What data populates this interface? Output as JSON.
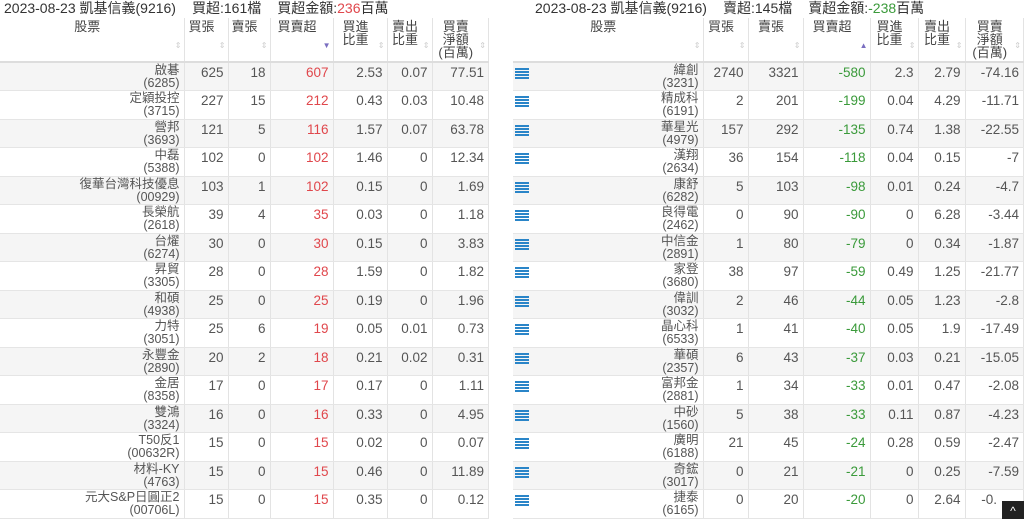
{
  "colors": {
    "positive": "#e0474c",
    "negative": "#3a9a3a",
    "icon": "#2a85c8"
  },
  "headers": [
    "股票",
    "買張",
    "賣張",
    "買賣超",
    "買進比重",
    "賣出比重",
    "買賣淨額(百萬)"
  ],
  "left": {
    "date_broker": "2023-08-23 凱基信義(9216)",
    "count_label": "買超:161檔",
    "amount_label": "買超金額:",
    "amount_value": "236",
    "amount_unit": "百萬",
    "sort": "descending",
    "rows": [
      [
        "啟碁",
        "(6285)",
        "625",
        "18",
        "607",
        "2.53",
        "0.07",
        "77.51"
      ],
      [
        "定穎投控",
        "(3715)",
        "227",
        "15",
        "212",
        "0.43",
        "0.03",
        "10.48"
      ],
      [
        "營邦",
        "(3693)",
        "121",
        "5",
        "116",
        "1.57",
        "0.07",
        "63.78"
      ],
      [
        "中磊",
        "(5388)",
        "102",
        "0",
        "102",
        "1.46",
        "0",
        "12.34"
      ],
      [
        "復華台灣科技優息",
        "(00929)",
        "103",
        "1",
        "102",
        "0.15",
        "0",
        "1.69"
      ],
      [
        "長榮航",
        "(2618)",
        "39",
        "4",
        "35",
        "0.03",
        "0",
        "1.18"
      ],
      [
        "台燿",
        "(6274)",
        "30",
        "0",
        "30",
        "0.15",
        "0",
        "3.83"
      ],
      [
        "昇貿",
        "(3305)",
        "28",
        "0",
        "28",
        "1.59",
        "0",
        "1.82"
      ],
      [
        "和碩",
        "(4938)",
        "25",
        "0",
        "25",
        "0.19",
        "0",
        "1.96"
      ],
      [
        "力特",
        "(3051)",
        "25",
        "6",
        "19",
        "0.05",
        "0.01",
        "0.73"
      ],
      [
        "永豐金",
        "(2890)",
        "20",
        "2",
        "18",
        "0.21",
        "0.02",
        "0.31"
      ],
      [
        "金居",
        "(8358)",
        "17",
        "0",
        "17",
        "0.17",
        "0",
        "1.11"
      ],
      [
        "雙鴻",
        "(3324)",
        "16",
        "0",
        "16",
        "0.33",
        "0",
        "4.95"
      ],
      [
        "T50反1",
        "(00632R)",
        "15",
        "0",
        "15",
        "0.02",
        "0",
        "0.07"
      ],
      [
        "材料-KY",
        "(4763)",
        "15",
        "0",
        "15",
        "0.46",
        "0",
        "11.89"
      ],
      [
        "元大S&P日圓正2",
        "(00706L)",
        "15",
        "0",
        "15",
        "0.35",
        "0",
        "0.12"
      ]
    ]
  },
  "right": {
    "date_broker": "2023-08-23 凱基信義(9216)",
    "count_label": "賣超:145檔",
    "amount_label": "賣超金額:",
    "amount_value": "-238",
    "amount_unit": "百萬",
    "sort": "ascending",
    "row_icon": "list-icon",
    "rows": [
      [
        "緯創",
        "(3231)",
        "2740",
        "3321",
        "-580",
        "2.3",
        "2.79",
        "-74.16"
      ],
      [
        "精成科",
        "(6191)",
        "2",
        "201",
        "-199",
        "0.04",
        "4.29",
        "-11.71"
      ],
      [
        "華星光",
        "(4979)",
        "157",
        "292",
        "-135",
        "0.74",
        "1.38",
        "-22.55"
      ],
      [
        "漢翔",
        "(2634)",
        "36",
        "154",
        "-118",
        "0.04",
        "0.15",
        "-7"
      ],
      [
        "康舒",
        "(6282)",
        "5",
        "103",
        "-98",
        "0.01",
        "0.24",
        "-4.7"
      ],
      [
        "良得電",
        "(2462)",
        "0",
        "90",
        "-90",
        "0",
        "6.28",
        "-3.44"
      ],
      [
        "中信金",
        "(2891)",
        "1",
        "80",
        "-79",
        "0",
        "0.34",
        "-1.87"
      ],
      [
        "家登",
        "(3680)",
        "38",
        "97",
        "-59",
        "0.49",
        "1.25",
        "-21.77"
      ],
      [
        "偉訓",
        "(3032)",
        "2",
        "46",
        "-44",
        "0.05",
        "1.23",
        "-2.8"
      ],
      [
        "晶心科",
        "(6533)",
        "1",
        "41",
        "-40",
        "0.05",
        "1.9",
        "-17.49"
      ],
      [
        "華碩",
        "(2357)",
        "6",
        "43",
        "-37",
        "0.03",
        "0.21",
        "-15.05"
      ],
      [
        "富邦金",
        "(2881)",
        "1",
        "34",
        "-33",
        "0.01",
        "0.47",
        "-2.08"
      ],
      [
        "中砂",
        "(1560)",
        "5",
        "38",
        "-33",
        "0.11",
        "0.87",
        "-4.23"
      ],
      [
        "廣明",
        "(6188)",
        "21",
        "45",
        "-24",
        "0.28",
        "0.59",
        "-2.47"
      ],
      [
        "奇鋐",
        "(3017)",
        "0",
        "21",
        "-21",
        "0",
        "0.25",
        "-7.59"
      ],
      [
        "捷泰",
        "(6165)",
        "0",
        "20",
        "-20",
        "0",
        "2.64",
        "-0."
      ]
    ]
  },
  "back_to_top": "^"
}
